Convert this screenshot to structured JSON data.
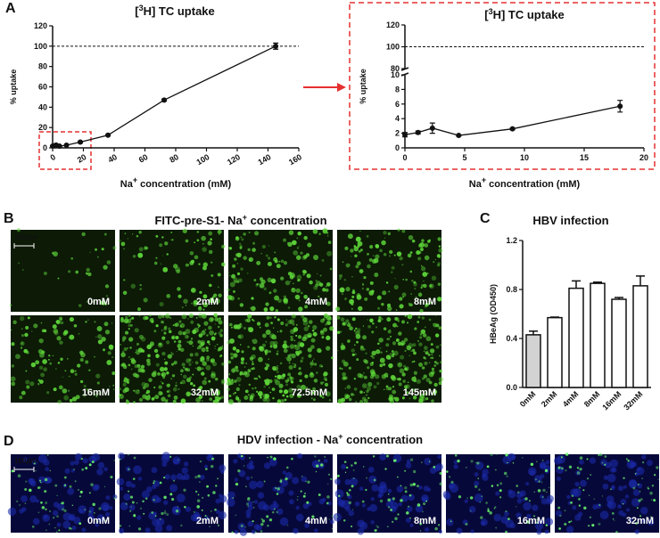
{
  "chart_data": [
    {
      "type": "line",
      "title": {
        "pre": "[",
        "sup": "3",
        "post": "H] TC uptake"
      },
      "ylabel": "% uptake",
      "xlabel": {
        "pre": "Na",
        "sup": "+",
        "post": " concentration (mM)"
      },
      "x": [
        0,
        1.1,
        2.3,
        4.5,
        9,
        18,
        36,
        72.5,
        145
      ],
      "values": [
        1.8,
        2.1,
        2.7,
        1.7,
        2.6,
        5.7,
        12.5,
        47,
        100
      ],
      "errors": [
        0.3,
        0.2,
        0.7,
        0.1,
        0.1,
        0.8,
        0.5,
        1,
        3
      ],
      "color": "#111111",
      "xlim": [
        0,
        160
      ],
      "xticks": [
        0,
        20,
        40,
        60,
        80,
        100,
        120,
        140,
        160
      ],
      "ylim": [
        0,
        120
      ],
      "yticks": [
        0,
        20,
        40,
        60,
        80,
        100,
        120
      ],
      "reference_line": 100
    },
    {
      "type": "line",
      "title": {
        "pre": "[",
        "sup": "3",
        "post": "H] TC uptake"
      },
      "ylabel": "% uptake",
      "xlabel": {
        "pre": "Na",
        "sup": "+",
        "post": " concentration (mM)"
      },
      "x": [
        0,
        1.1,
        2.3,
        4.5,
        9,
        18
      ],
      "values": [
        1.8,
        2.1,
        2.7,
        1.7,
        2.6,
        5.7
      ],
      "errors": [
        0.3,
        0.2,
        0.7,
        0.1,
        0.1,
        0.8
      ],
      "color": "#111111",
      "xlim": [
        0,
        20
      ],
      "xticks": [
        0,
        5,
        10,
        15,
        20
      ],
      "ylim": [
        0,
        10
      ],
      "yticks": [
        0,
        2,
        4,
        6,
        8,
        10
      ],
      "ylim_upper": [
        80,
        120
      ],
      "yticks_upper": [
        80,
        100,
        120
      ],
      "reference_line": 100
    },
    {
      "type": "bar",
      "title": "HBV infection",
      "ylabel": "HBeAg (OD450)",
      "categories": [
        "0mM",
        "2mM",
        "4mM",
        "8mM",
        "16mM",
        "32mM"
      ],
      "values": [
        0.43,
        0.57,
        0.81,
        0.85,
        0.72,
        0.83
      ],
      "errors": [
        0.03,
        0.005,
        0.06,
        0.01,
        0.015,
        0.08
      ],
      "colors": [
        "#d3d3d3",
        "#ffffff",
        "#ffffff",
        "#ffffff",
        "#ffffff",
        "#ffffff"
      ],
      "ylim": [
        0,
        1.2
      ],
      "yticks": [
        {
          "value": 0,
          "label": "0.0"
        },
        0.4,
        0.8,
        1.2
      ]
    }
  ],
  "panel_letters": [
    "A",
    "B",
    "C",
    "D"
  ],
  "panel_b": {
    "title": {
      "pre": "FITC-pre-S1- Na",
      "sup": "+",
      "post": "  concentration"
    },
    "scale": "100μm",
    "labels": [
      "0mM",
      "2mM",
      "4mM",
      "8mM",
      "16mM",
      "32mM",
      "72.5mM",
      "145mM"
    ]
  },
  "panel_d": {
    "title": {
      "pre": "HDV infection - Na",
      "sup": "+",
      "post": "  concentration"
    },
    "scale": "100μm",
    "labels": [
      "0mM",
      "2mM",
      "4mM",
      "8mM",
      "16mM",
      "32mM"
    ]
  }
}
